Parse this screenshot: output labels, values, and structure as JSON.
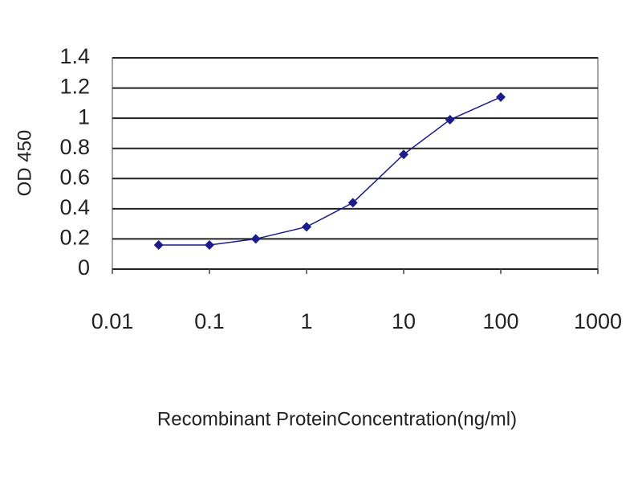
{
  "chart_data": {
    "type": "line",
    "x_label": "Recombinant ProteinConcentration(ng/ml)",
    "y_label": "OD 450",
    "x": [
      0.03,
      0.1,
      0.3,
      1,
      3,
      10,
      30,
      100
    ],
    "series": [
      {
        "color": "#1c1c8a",
        "values": [
          0.16,
          0.16,
          0.2,
          0.28,
          0.44,
          0.76,
          0.99,
          1.14
        ]
      }
    ],
    "xlim": [
      0.01,
      1000
    ],
    "xticks": [
      0.01,
      0.1,
      1,
      10,
      100,
      1000
    ],
    "x_log": true,
    "ylim": [
      0,
      1.4
    ],
    "yticks": [
      0,
      0.2,
      0.4,
      0.6,
      0.8,
      1,
      1.2,
      1.4
    ],
    "grid": true
  }
}
